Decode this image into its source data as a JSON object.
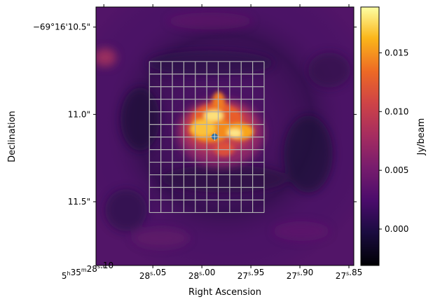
{
  "chart_data": {
    "type": "heatmap",
    "xlabel": "Right Ascension",
    "ylabel": "Declination",
    "x_ticks": [
      {
        "value": 28.1,
        "h": "5",
        "m": "35",
        "s": "28.10",
        "prefix": true
      },
      {
        "value": 28.05,
        "s": "28.05"
      },
      {
        "value": 28.0,
        "s": "28.00"
      },
      {
        "value": 27.95,
        "s": "27.95"
      },
      {
        "value": 27.9,
        "s": "27.90"
      },
      {
        "value": 27.85,
        "s": "27.85"
      }
    ],
    "x_range_seconds": [
      28.108,
      27.845
    ],
    "y_ticks": [
      {
        "value": 10.5,
        "label": "−69°16'10.5\""
      },
      {
        "value": 11.0,
        "label": "11.0\""
      },
      {
        "value": 11.5,
        "label": "11.5\""
      }
    ],
    "y_range_arcsec": [
      10.385,
      11.865
    ],
    "colorbar": {
      "label": "Jy/beam",
      "ticks": [
        0.015,
        0.01,
        0.005,
        0.0
      ],
      "tick_labels": [
        "0.015",
        "0.010",
        "0.005",
        "0.000"
      ],
      "range": [
        -0.0031,
        0.0189
      ],
      "colormap": "inferno"
    },
    "grid_overlay": {
      "columns": 10,
      "rows": 12,
      "x_seconds": [
        28.0535,
        27.9365
      ],
      "y_arcsec": [
        10.697,
        11.562
      ],
      "color": "#b0b0b0"
    },
    "marker": {
      "x_seconds": 27.987,
      "y_arcsec": 11.127,
      "color": "#2e6fa3"
    },
    "emission": {
      "peak_jy_per_beam": 0.0165,
      "background_jy_per_beam": 0.004
    }
  }
}
